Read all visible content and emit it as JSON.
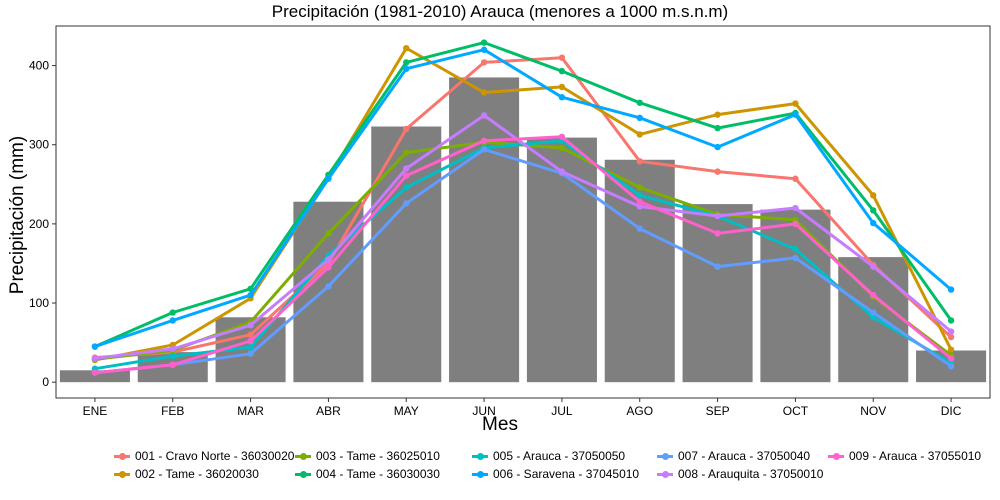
{
  "chart_data": {
    "type": "bar+line",
    "title": "Precipitación (1981-2010) Arauca (menores a 1000 m.s.n.m)",
    "xlabel": "Mes",
    "ylabel": "Precipitación (mm)",
    "categories": [
      "ENE",
      "FEB",
      "MAR",
      "ABR",
      "MAY",
      "JUN",
      "JUL",
      "AGO",
      "SEP",
      "OCT",
      "NOV",
      "DIC"
    ],
    "ylim": [
      -20,
      450
    ],
    "yticks": [
      0,
      100,
      200,
      300,
      400
    ],
    "bar_color": "#7f7f7f",
    "bars": [
      15,
      38,
      82,
      228,
      323,
      385,
      309,
      281,
      225,
      218,
      158,
      40
    ],
    "legend_position": "bottom",
    "series": [
      {
        "name": "001 - Cravo Norte - 36030020",
        "color": "#F8766D",
        "values": [
          31,
          38,
          60,
          150,
          320,
          404,
          410,
          279,
          266,
          257,
          148,
          57
        ]
      },
      {
        "name": "002 - Tame - 36020030",
        "color": "#CD9600",
        "values": [
          28,
          47,
          106,
          258,
          422,
          366,
          373,
          313,
          338,
          352,
          236,
          41
        ]
      },
      {
        "name": "003 - Tame - 36025010",
        "color": "#7CAE00",
        "values": [
          29,
          40,
          76,
          188,
          290,
          303,
          296,
          246,
          212,
          205,
          108,
          34
        ]
      },
      {
        "name": "004 - Tame - 36030030",
        "color": "#00BE67",
        "values": [
          45,
          88,
          118,
          262,
          404,
          429,
          393,
          353,
          321,
          340,
          217,
          78
        ]
      },
      {
        "name": "005 - Arauca - 37050050",
        "color": "#00BFC4",
        "values": [
          17,
          33,
          44,
          160,
          246,
          296,
          305,
          236,
          210,
          168,
          82,
          24
        ]
      },
      {
        "name": "006 - Saravena - 37045010",
        "color": "#00A9FF",
        "values": [
          45,
          78,
          110,
          257,
          396,
          420,
          360,
          334,
          297,
          338,
          201,
          117
        ]
      },
      {
        "name": "007 - Arauca - 37050040",
        "color": "#619CFF",
        "values": [
          12,
          22,
          36,
          121,
          226,
          294,
          264,
          194,
          146,
          157,
          88,
          20
        ]
      },
      {
        "name": "008 - Arauquita - 37050010",
        "color": "#C77CFF",
        "values": [
          30,
          42,
          72,
          155,
          270,
          337,
          266,
          222,
          210,
          220,
          146,
          64
        ]
      },
      {
        "name": "009 - Arauca - 37055010",
        "color": "#FF61CC",
        "values": [
          12,
          22,
          52,
          145,
          261,
          305,
          310,
          228,
          188,
          200,
          110,
          30
        ]
      }
    ]
  }
}
